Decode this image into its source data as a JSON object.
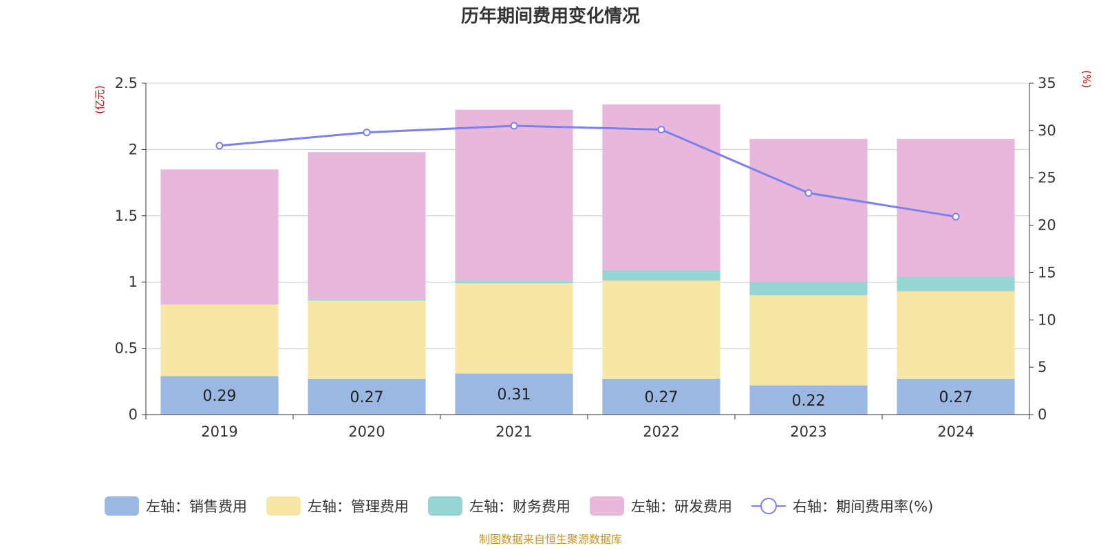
{
  "chart_data": {
    "type": "bar",
    "title": "历年期间费用变化情况",
    "categories": [
      "2019",
      "2020",
      "2021",
      "2022",
      "2023",
      "2024"
    ],
    "left_axis": {
      "unit": "(亿元)",
      "ylim": [
        0,
        2.5
      ],
      "ticks": [
        "0",
        "0.5",
        "1",
        "1.5",
        "2",
        "2.5"
      ]
    },
    "right_axis": {
      "unit": "(%)",
      "ylim": [
        0,
        35
      ],
      "ticks": [
        "0",
        "5",
        "10",
        "15",
        "20",
        "25",
        "30",
        "35"
      ]
    },
    "series": [
      {
        "name": "左轴：销售费用",
        "type": "bar",
        "stack": "total",
        "axis": "left",
        "color": "#9bb8e3",
        "values": [
          0.29,
          0.27,
          0.31,
          0.27,
          0.22,
          0.27
        ],
        "labels": [
          "0.29",
          "0.27",
          "0.31",
          "0.27",
          "0.22",
          "0.27"
        ]
      },
      {
        "name": "左轴：管理费用",
        "type": "bar",
        "stack": "total",
        "axis": "left",
        "color": "#f7e7a6",
        "values": [
          0.54,
          0.59,
          0.68,
          0.74,
          0.68,
          0.66
        ]
      },
      {
        "name": "左轴：财务费用",
        "type": "bar",
        "stack": "total",
        "axis": "left",
        "color": "#96d5d3",
        "values": [
          0.0,
          0.01,
          0.02,
          0.08,
          0.1,
          0.11
        ]
      },
      {
        "name": "左轴：研发费用",
        "type": "bar",
        "stack": "total",
        "axis": "left",
        "color": "#e7b8d9",
        "values": [
          1.02,
          1.11,
          1.29,
          1.25,
          1.08,
          1.04
        ]
      },
      {
        "name": "右轴：期间费用率(%)",
        "type": "line",
        "axis": "right",
        "color": "#7b7ff0",
        "values": [
          28.4,
          29.8,
          30.5,
          30.1,
          23.4,
          20.9
        ]
      }
    ],
    "legend_position": "bottom",
    "grid": true
  },
  "source": {
    "text": "制图数据来自恒生聚源数据库",
    "color": "#c8962a"
  }
}
